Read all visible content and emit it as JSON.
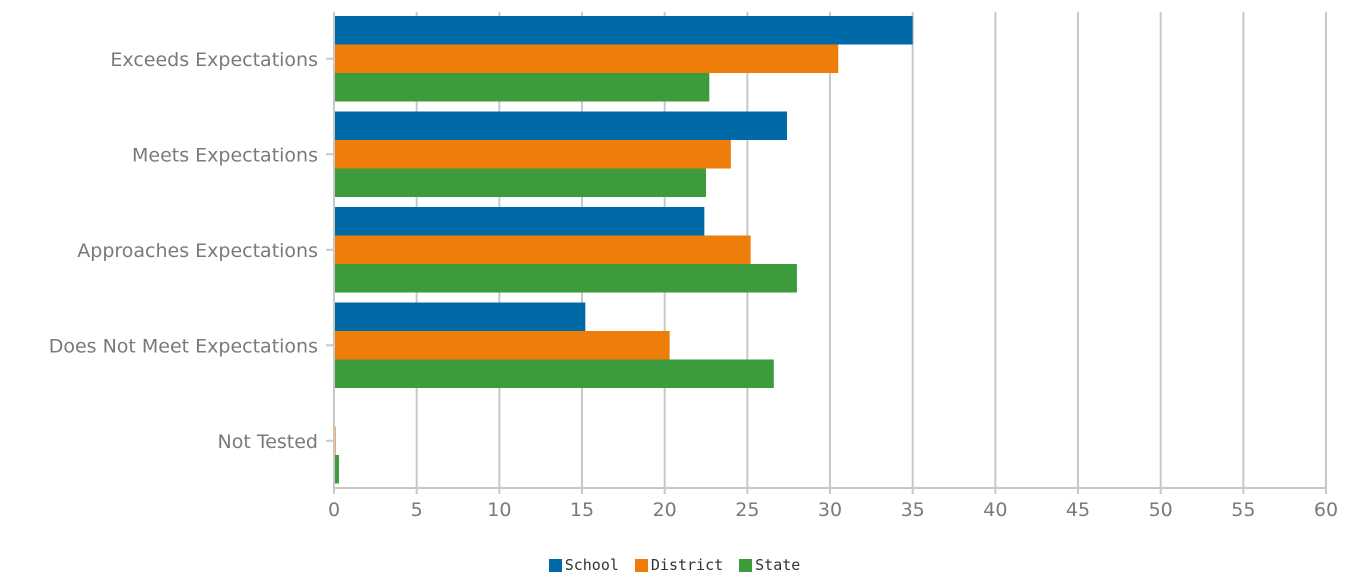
{
  "chart_data": {
    "type": "bar",
    "orientation": "horizontal",
    "categories": [
      "Exceeds Expectations",
      "Meets Expectations",
      "Approaches Expectations",
      "Does Not Meet Expectations",
      "Not Tested"
    ],
    "series": [
      {
        "name": "School",
        "color": "#006aa7",
        "values": [
          35.0,
          27.4,
          22.4,
          15.2,
          0.0
        ]
      },
      {
        "name": "District",
        "color": "#ef7d0a",
        "values": [
          30.5,
          24.0,
          25.2,
          20.3,
          0.1
        ]
      },
      {
        "name": "State",
        "color": "#3c9b3a",
        "values": [
          22.7,
          22.5,
          28.0,
          26.6,
          0.3
        ]
      }
    ],
    "xlim": [
      0,
      60
    ],
    "xticks": [
      "0",
      "5",
      "10",
      "15",
      "20",
      "25",
      "30",
      "35",
      "40",
      "45",
      "50",
      "55",
      "60"
    ],
    "grid": true,
    "legend_position": "bottom"
  }
}
